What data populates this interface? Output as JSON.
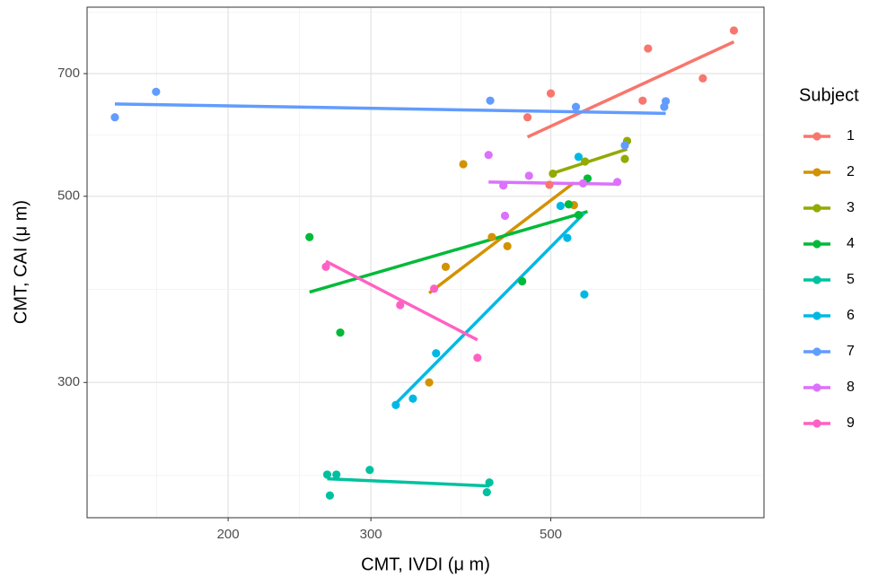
{
  "chart_data": {
    "type": "scatter",
    "x_label": "CMT, IVDI (μ m)",
    "y_label": "CMT, CAI (μ m)",
    "legend_title": "Subject",
    "x_log": true,
    "y_log": true,
    "grid": true,
    "trend_lines": true,
    "xlim": [
      134,
      916
    ],
    "ylim": [
      207,
      840
    ],
    "xticks": [
      200,
      300,
      500
    ],
    "yticks": [
      300,
      500,
      700
    ],
    "series": [
      {
        "name": "1",
        "color": "#F8766D",
        "x": [
          841,
          659,
          500,
          770,
          649,
          468,
          498
        ],
        "y": [
          788,
          750,
          663,
          691,
          650,
          621,
          516
        ]
      },
      {
        "name": "2",
        "color": "#D39200",
        "x": [
          390,
          534,
          442,
          423,
          354,
          371
        ],
        "y": [
          546,
          488,
          436,
          447,
          300,
          412
        ]
      },
      {
        "name": "3",
        "color": "#93AA00",
        "x": [
          621,
          503,
          551,
          617
        ],
        "y": [
          582,
          532,
          550,
          554
        ]
      },
      {
        "name": "4",
        "color": "#00BA38",
        "x": [
          252,
          275,
          461,
          555,
          526,
          541
        ],
        "y": [
          447,
          344,
          396,
          525,
          489,
          475
        ]
      },
      {
        "name": "5",
        "color": "#00C19F",
        "x": [
          299,
          265,
          272,
          267,
          420,
          417
        ],
        "y": [
          236,
          233,
          233,
          220,
          228,
          222
        ]
      },
      {
        "name": "6",
        "color": "#00B9E3",
        "x": [
          541,
          514,
          524,
          550,
          361,
          338,
          322
        ],
        "y": [
          557,
          487,
          446,
          382,
          325,
          287,
          282
        ]
      },
      {
        "name": "7",
        "color": "#619CFF",
        "x": [
          145,
          163,
          421,
          537,
          693,
          690,
          617
        ],
        "y": [
          621,
          666,
          650,
          639,
          649,
          639,
          575
        ]
      },
      {
        "name": "8",
        "color": "#DB72FB",
        "x": [
          419,
          437,
          470,
          439,
          604,
          548
        ],
        "y": [
          560,
          515,
          529,
          474,
          520,
          518
        ]
      },
      {
        "name": "9",
        "color": "#FF61C3",
        "x": [
          264,
          326,
          359,
          406
        ],
        "y": [
          412,
          371,
          388,
          321
        ]
      }
    ]
  }
}
